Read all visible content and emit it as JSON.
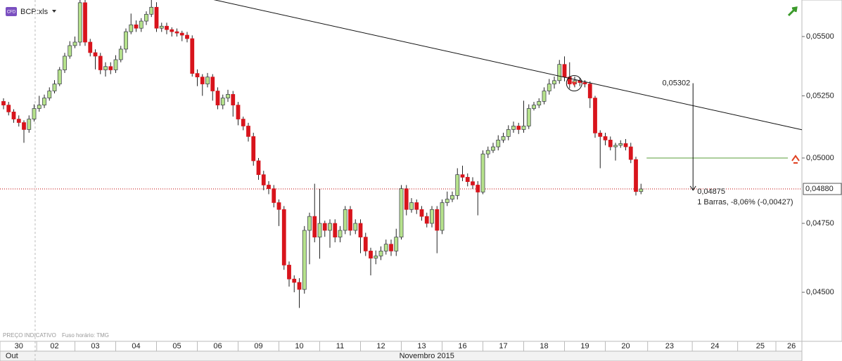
{
  "chart_data": {
    "type": "candlestick",
    "symbol": "BCP:xls",
    "source_note": "PREÇO INDICATIVO",
    "timezone_note": "Fuso horário: TMG",
    "log_scale": true,
    "up_color": "#b6e28c",
    "down_color": "#d8141c",
    "ylim": [
      0.0433,
      0.0566
    ],
    "yticks": [
      {
        "value": 0.055,
        "label": "0,05500"
      },
      {
        "value": 0.0525,
        "label": "0,05250"
      },
      {
        "value": 0.05,
        "label": "0,05000"
      },
      {
        "value": 0.0475,
        "label": "0,04750"
      },
      {
        "value": 0.045,
        "label": "0,04500"
      }
    ],
    "xlim": [
      -0.69,
      156.55
    ],
    "xticks": [
      {
        "value": 3,
        "label": "30"
      },
      {
        "value": 10,
        "label": "02"
      },
      {
        "value": 18,
        "label": "03"
      },
      {
        "value": 26,
        "label": "04"
      },
      {
        "value": 34,
        "label": "05"
      },
      {
        "value": 42,
        "label": "06"
      },
      {
        "value": 50,
        "label": "09"
      },
      {
        "value": 58,
        "label": "10"
      },
      {
        "value": 66,
        "label": "11"
      },
      {
        "value": 74,
        "label": "12"
      },
      {
        "value": 82,
        "label": "13"
      },
      {
        "value": 90,
        "label": "16"
      },
      {
        "value": 98,
        "label": "17"
      },
      {
        "value": 106,
        "label": "18"
      },
      {
        "value": 114,
        "label": "19"
      },
      {
        "value": 122,
        "label": "20"
      },
      {
        "value": 130.6,
        "label": "23"
      },
      {
        "value": 139.5,
        "label": "24"
      },
      {
        "value": 148.4,
        "label": "25"
      },
      {
        "value": 154.5,
        "label": "26"
      }
    ],
    "month_labels": [
      {
        "value": 0.4,
        "label": "Out"
      },
      {
        "value": 83,
        "label": "Novembro 2015"
      }
    ],
    "month_boundary": 6.2,
    "last_price": {
      "value": 0.0488,
      "label": "0,04880",
      "color": "#c00000"
    },
    "trendline": {
      "x": [
        40.7,
        156.55
      ],
      "y": [
        0.05664,
        0.05112
      ]
    },
    "alert_level": {
      "value": 0.05,
      "x": [
        126.1,
        153.8
      ],
      "color": "#5a9e3a"
    },
    "signal": {
      "x": 111.9,
      "y": 0.05302
    },
    "measure": {
      "x": 135.2,
      "from": {
        "value": 0.05302,
        "label": "0,05302"
      },
      "to": {
        "value": 0.04875,
        "label": "0,04875"
      },
      "stat": "1 Barras, -8,06% (-0,00427)"
    },
    "series": [
      {
        "ohlc": [
          [
            0.05227,
            0.0524,
            0.05195,
            0.05212
          ],
          [
            0.05212,
            0.05225,
            0.0517,
            0.05184
          ],
          [
            0.05184,
            0.05195,
            0.0514,
            0.05155
          ],
          [
            0.05155,
            0.0517,
            0.05125,
            0.05141
          ],
          [
            0.05141,
            0.0515,
            0.0506,
            0.05113
          ],
          [
            0.05113,
            0.0517,
            0.051,
            0.05155
          ],
          [
            0.05155,
            0.05215,
            0.05145,
            0.05198
          ],
          [
            0.05198,
            0.0525,
            0.05185,
            0.05212
          ],
          [
            0.05212,
            0.05255,
            0.052,
            0.05241
          ],
          [
            0.05241,
            0.05285,
            0.0523,
            0.0527
          ],
          [
            0.0527,
            0.05315,
            0.0526,
            0.05299
          ],
          [
            0.05299,
            0.0537,
            0.0529,
            0.05358
          ],
          [
            0.05358,
            0.0543,
            0.05345,
            0.05416
          ],
          [
            0.05416,
            0.0548,
            0.05405,
            0.05461
          ],
          [
            0.05461,
            0.055,
            0.0545,
            0.05476
          ],
          [
            0.05476,
            0.05664,
            0.0546,
            0.05648
          ],
          [
            0.05648,
            0.0566,
            0.0546,
            0.05476
          ],
          [
            0.05476,
            0.0549,
            0.05415,
            0.05431
          ],
          [
            0.05431,
            0.05445,
            0.0536,
            0.05416
          ],
          [
            0.05416,
            0.0543,
            0.0534,
            0.05358
          ],
          [
            0.05358,
            0.0539,
            0.0533,
            0.05372
          ],
          [
            0.05372,
            0.0539,
            0.0534,
            0.05358
          ],
          [
            0.05358,
            0.0542,
            0.05345,
            0.05401
          ],
          [
            0.05401,
            0.0546,
            0.0539,
            0.05446
          ],
          [
            0.05446,
            0.05535,
            0.0543,
            0.05521
          ],
          [
            0.05521,
            0.056,
            0.0551,
            0.05551
          ],
          [
            0.05551,
            0.0557,
            0.0552,
            0.05536
          ],
          [
            0.05536,
            0.0558,
            0.0552,
            0.05567
          ],
          [
            0.05567,
            0.0561,
            0.0555,
            0.05597
          ],
          [
            0.05597,
            0.0566,
            0.05585,
            0.05628
          ],
          [
            0.05628,
            0.0565,
            0.0552,
            0.05536
          ],
          [
            0.05536,
            0.0556,
            0.0552,
            0.05545
          ],
          [
            0.05545,
            0.0556,
            0.0551,
            0.0553
          ],
          [
            0.0553,
            0.0554,
            0.055,
            0.05521
          ],
          [
            0.05521,
            0.05535,
            0.055,
            0.05515
          ],
          [
            0.05515,
            0.05525,
            0.0548,
            0.05506
          ],
          [
            0.05506,
            0.0552,
            0.05475,
            0.05491
          ],
          [
            0.05491,
            0.05505,
            0.0533,
            0.05343
          ],
          [
            0.05343,
            0.0536,
            0.0529,
            0.05328
          ],
          [
            0.05328,
            0.0534,
            0.0525,
            0.05299
          ],
          [
            0.05299,
            0.05345,
            0.05285,
            0.05328
          ],
          [
            0.05328,
            0.0534,
            0.0523,
            0.0527
          ],
          [
            0.0527,
            0.05285,
            0.05195,
            0.05212
          ],
          [
            0.05212,
            0.05255,
            0.05195,
            0.05241
          ],
          [
            0.05241,
            0.05275,
            0.05225,
            0.05256
          ],
          [
            0.05256,
            0.0527,
            0.05165,
            0.05212
          ],
          [
            0.05212,
            0.05225,
            0.0513,
            0.05155
          ],
          [
            0.05155,
            0.05165,
            0.0511,
            0.05127
          ],
          [
            0.05127,
            0.0514,
            0.05065,
            0.05085
          ],
          [
            0.05085,
            0.051,
            0.0497,
            0.04989
          ],
          [
            0.04989,
            0.05,
            0.04915,
            0.04935
          ],
          [
            0.04935,
            0.0495,
            0.04875,
            0.04895
          ],
          [
            0.04895,
            0.0491,
            0.0486,
            0.04881
          ],
          [
            0.04881,
            0.04895,
            0.0481,
            0.04828
          ],
          [
            0.04828,
            0.0484,
            0.0474,
            0.04802
          ],
          [
            0.04802,
            0.04815,
            0.0458,
            0.04597
          ],
          [
            0.04597,
            0.0461,
            0.0452,
            0.04547
          ],
          [
            0.04547,
            0.0456,
            0.045,
            0.04535
          ],
          [
            0.04535,
            0.0455,
            0.04445,
            0.0451
          ],
          [
            0.0451,
            0.0474,
            0.04495,
            0.04724
          ],
          [
            0.04724,
            0.0479,
            0.046,
            0.04776
          ],
          [
            0.04776,
            0.049,
            0.0468,
            0.04699
          ],
          [
            0.04699,
            0.0488,
            0.0462,
            0.0475
          ],
          [
            0.0475,
            0.0476,
            0.047,
            0.04724
          ],
          [
            0.04724,
            0.04765,
            0.0466,
            0.0475
          ],
          [
            0.0475,
            0.04765,
            0.0468,
            0.04699
          ],
          [
            0.04699,
            0.0474,
            0.0468,
            0.04724
          ],
          [
            0.04724,
            0.04815,
            0.0471,
            0.04802
          ],
          [
            0.04802,
            0.04815,
            0.04705,
            0.04724
          ],
          [
            0.04724,
            0.04765,
            0.0471,
            0.0475
          ],
          [
            0.0475,
            0.04765,
            0.0464,
            0.04699
          ],
          [
            0.04699,
            0.04715,
            0.0463,
            0.04648
          ],
          [
            0.04648,
            0.0466,
            0.0456,
            0.04622
          ],
          [
            0.04622,
            0.0465,
            0.046,
            0.0463
          ],
          [
            0.0463,
            0.04665,
            0.04615,
            0.04648
          ],
          [
            0.04648,
            0.0469,
            0.04635,
            0.04673
          ],
          [
            0.04673,
            0.0469,
            0.0463,
            0.04648
          ],
          [
            0.04648,
            0.0473,
            0.0463,
            0.04699
          ],
          [
            0.04699,
            0.04895,
            0.0469,
            0.04881
          ],
          [
            0.04881,
            0.04895,
            0.0478,
            0.04802
          ],
          [
            0.04802,
            0.04845,
            0.0479,
            0.04828
          ],
          [
            0.04828,
            0.0484,
            0.04785,
            0.04802
          ],
          [
            0.04802,
            0.04815,
            0.0476,
            0.04776
          ],
          [
            0.04776,
            0.0479,
            0.04735,
            0.0475
          ],
          [
            0.0475,
            0.04815,
            0.04735,
            0.04802
          ],
          [
            0.04802,
            0.04815,
            0.0464,
            0.04724
          ],
          [
            0.04724,
            0.0484,
            0.0471,
            0.04828
          ],
          [
            0.04828,
            0.0487,
            0.04815,
            0.04841
          ],
          [
            0.04841,
            0.0487,
            0.0483,
            0.04855
          ],
          [
            0.04855,
            0.0496,
            0.0484,
            0.04935
          ],
          [
            0.04935,
            0.0497,
            0.0491,
            0.04925
          ],
          [
            0.04925,
            0.0494,
            0.0489,
            0.04908
          ],
          [
            0.04908,
            0.04925,
            0.0488,
            0.04895
          ],
          [
            0.04895,
            0.0491,
            0.0478,
            0.04868
          ],
          [
            0.04868,
            0.0503,
            0.0486,
            0.05016
          ],
          [
            0.05016,
            0.05045,
            0.05,
            0.0503
          ],
          [
            0.0503,
            0.0506,
            0.0502,
            0.05044
          ],
          [
            0.05044,
            0.0509,
            0.0503,
            0.05071
          ],
          [
            0.05071,
            0.051,
            0.0506,
            0.05085
          ],
          [
            0.05085,
            0.0513,
            0.0507,
            0.05113
          ],
          [
            0.05113,
            0.05145,
            0.051,
            0.05127
          ],
          [
            0.05127,
            0.0514,
            0.05095,
            0.05113
          ],
          [
            0.05113,
            0.0523,
            0.051,
            0.05127
          ],
          [
            0.05127,
            0.05215,
            0.05115,
            0.05198
          ],
          [
            0.05198,
            0.05225,
            0.0519,
            0.05212
          ],
          [
            0.05212,
            0.0524,
            0.052,
            0.05227
          ],
          [
            0.05227,
            0.05285,
            0.05215,
            0.0527
          ],
          [
            0.0527,
            0.0532,
            0.05255,
            0.05299
          ],
          [
            0.05299,
            0.0533,
            0.0528,
            0.05313
          ],
          [
            0.05313,
            0.054,
            0.053,
            0.05381
          ],
          [
            0.05381,
            0.05415,
            0.0531,
            0.05328
          ],
          [
            0.05328,
            0.0539,
            0.0528,
            0.05299
          ],
          [
            0.05299,
            0.0533,
            0.05285,
            0.05313
          ],
          [
            0.05313,
            0.05325,
            0.0529,
            0.05305
          ],
          [
            0.05305,
            0.05315,
            0.05285,
            0.05299
          ],
          [
            0.05299,
            0.0531,
            0.052,
            0.05241
          ],
          [
            0.05241,
            0.0525,
            0.0508,
            0.05099
          ],
          [
            0.05099,
            0.0511,
            0.0496,
            0.05085
          ],
          [
            0.05085,
            0.051,
            0.0505,
            0.05071
          ],
          [
            0.05071,
            0.05085,
            0.0503,
            0.05044
          ],
          [
            0.05044,
            0.0506,
            0.0499,
            0.0505
          ],
          [
            0.0505,
            0.0507,
            0.0504,
            0.05057
          ],
          [
            0.05057,
            0.05075,
            0.0503,
            0.05044
          ],
          [
            0.05044,
            0.0506,
            0.0498,
            0.04994
          ],
          [
            0.04994,
            0.05005,
            0.04855,
            0.0487
          ],
          [
            0.0487,
            0.049,
            0.0486,
            0.0488
          ]
        ]
      }
    ]
  }
}
